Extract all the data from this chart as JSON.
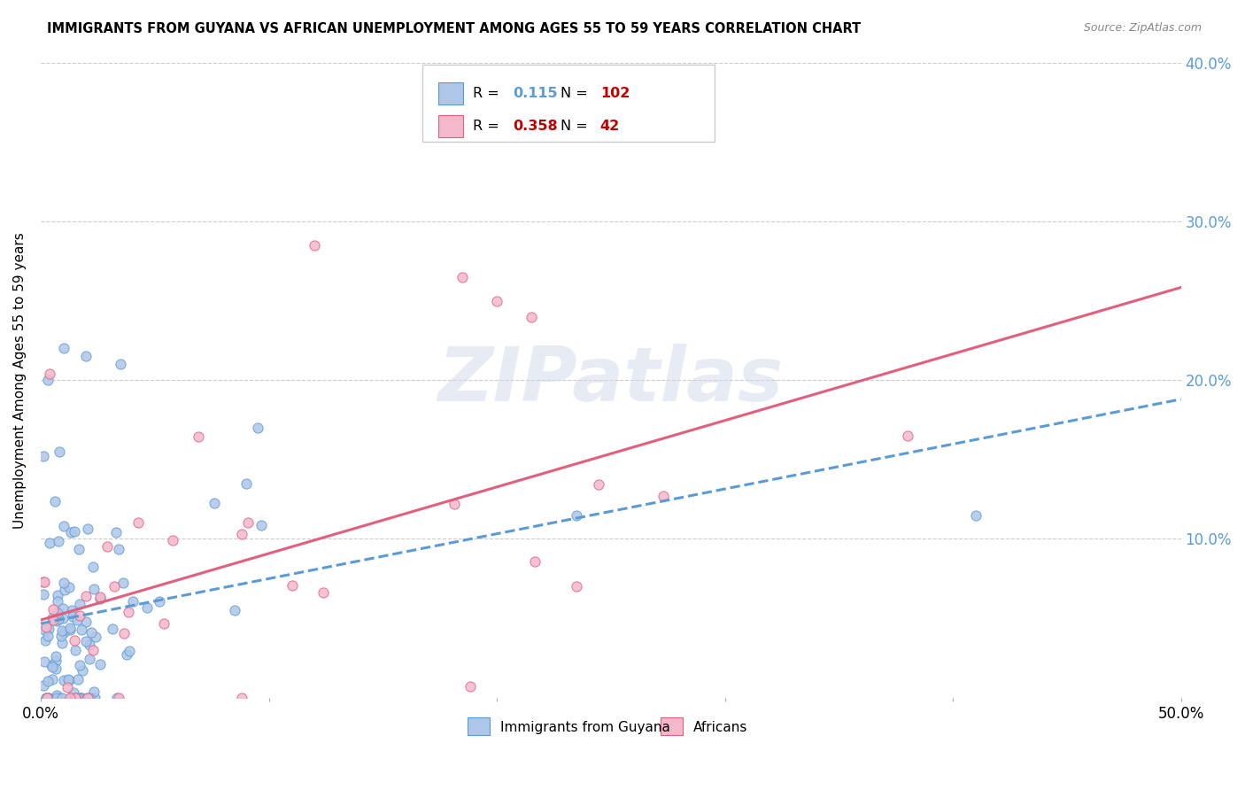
{
  "title": "IMMIGRANTS FROM GUYANA VS AFRICAN UNEMPLOYMENT AMONG AGES 55 TO 59 YEARS CORRELATION CHART",
  "source": "Source: ZipAtlas.com",
  "ylabel": "Unemployment Among Ages 55 to 59 years",
  "xlim": [
    0,
    0.5
  ],
  "ylim": [
    0,
    0.4
  ],
  "series1_color": "#aec6e8",
  "series1_edge": "#5b9bd5",
  "series2_color": "#f4b8cc",
  "series2_edge": "#e0607e",
  "trendline1_color": "#5b9bd5",
  "trendline2_color": "#e0607e",
  "legend_r1": "0.115",
  "legend_n1": "102",
  "legend_r2": "0.358",
  "legend_n2": "42",
  "legend_label1": "Immigrants from Guyana",
  "legend_label2": "Africans",
  "watermark": "ZIPatlas",
  "n_guyana": 102,
  "n_african": 42
}
